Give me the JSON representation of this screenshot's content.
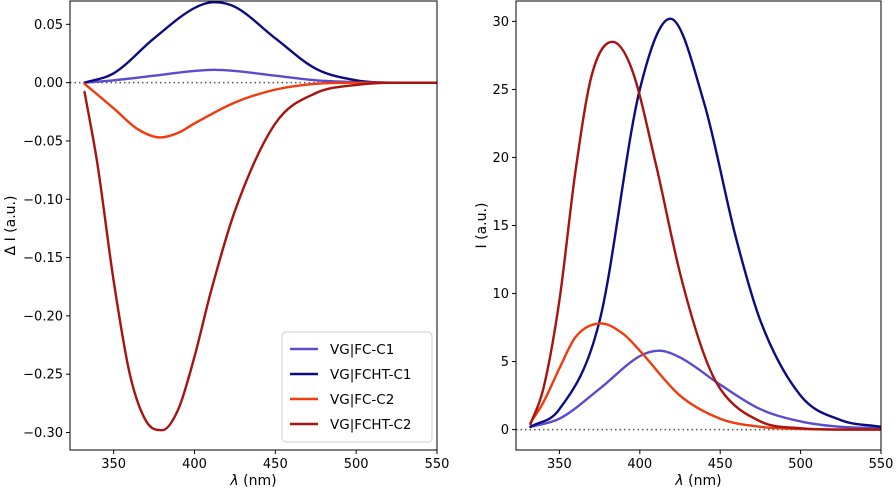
{
  "chart_data": [
    {
      "type": "line",
      "panel": "left",
      "xlabel_symbol": "λ",
      "xlabel_unit": "(nm)",
      "ylabel": "Δ I (a.u.)",
      "xlim": [
        323,
        550
      ],
      "ylim": [
        -0.315,
        0.07
      ],
      "xticks": [
        350,
        400,
        450,
        500,
        550
      ],
      "yticks": [
        0.05,
        0.0,
        -0.05,
        -0.1,
        -0.15,
        -0.2,
        -0.25,
        -0.3
      ],
      "ytick_labels": [
        "0.05",
        "0.00",
        "−0.05",
        "−0.10",
        "−0.15",
        "−0.20",
        "−0.25",
        "−0.30"
      ],
      "zero_line": true,
      "legend_position": "lower-right",
      "series": [
        {
          "name": "VG|FC-C1",
          "color": "#5a4ccf",
          "x": [
            332,
            350,
            375,
            400,
            412,
            425,
            450,
            475,
            500,
            525,
            550
          ],
          "y": [
            0.0,
            0.002,
            0.006,
            0.01,
            0.011,
            0.01,
            0.006,
            0.002,
            0.0005,
            0.0,
            0.0
          ]
        },
        {
          "name": "VG|FCHT-C1",
          "color": "#0b0b82",
          "x": [
            332,
            350,
            375,
            400,
            412,
            425,
            450,
            475,
            500,
            525,
            550
          ],
          "y": [
            0.0,
            0.008,
            0.038,
            0.064,
            0.069,
            0.065,
            0.038,
            0.012,
            0.002,
            0.0,
            0.0
          ]
        },
        {
          "name": "VG|FC-C2",
          "color": "#f23a0c",
          "x": [
            332,
            350,
            365,
            379,
            390,
            400,
            425,
            450,
            475,
            500,
            525,
            550
          ],
          "y": [
            -0.001,
            -0.022,
            -0.04,
            -0.047,
            -0.043,
            -0.035,
            -0.017,
            -0.006,
            -0.001,
            0.0,
            0.0,
            0.0
          ]
        },
        {
          "name": "VG|FCHT-C2",
          "color": "#a8120f",
          "x": [
            332,
            340,
            350,
            360,
            370,
            380,
            390,
            400,
            410,
            425,
            450,
            475,
            500,
            525,
            550
          ],
          "y": [
            -0.008,
            -0.07,
            -0.17,
            -0.25,
            -0.29,
            -0.298,
            -0.28,
            -0.235,
            -0.18,
            -0.11,
            -0.035,
            -0.009,
            -0.002,
            0.0,
            0.0
          ]
        }
      ]
    },
    {
      "type": "line",
      "panel": "right",
      "xlabel_symbol": "λ",
      "xlabel_unit": "(nm)",
      "ylabel": "I (a.u.)",
      "xlim": [
        323,
        550
      ],
      "ylim": [
        -1.5,
        31.5
      ],
      "xticks": [
        350,
        400,
        450,
        500,
        550
      ],
      "yticks": [
        0,
        5,
        10,
        15,
        20,
        25,
        30
      ],
      "ytick_labels": [
        "0",
        "5",
        "10",
        "15",
        "20",
        "25",
        "30"
      ],
      "zero_line": true,
      "series": [
        {
          "name": "VG|FC-C1",
          "color": "#5a4ccf",
          "x": [
            332,
            350,
            375,
            400,
            412,
            425,
            450,
            475,
            500,
            525,
            550
          ],
          "y": [
            0.2,
            0.8,
            3.0,
            5.4,
            5.8,
            5.3,
            3.3,
            1.5,
            0.6,
            0.2,
            0.1
          ]
        },
        {
          "name": "VG|FCHT-C1",
          "color": "#0b0b82",
          "x": [
            332,
            350,
            375,
            400,
            419,
            440,
            460,
            475,
            500,
            525,
            550
          ],
          "y": [
            0.2,
            1.5,
            8.0,
            25.0,
            30.2,
            24.0,
            14.0,
            8.0,
            2.5,
            0.7,
            0.2
          ]
        },
        {
          "name": "VG|FC-C2",
          "color": "#f23a0c",
          "x": [
            332,
            340,
            350,
            360,
            376,
            390,
            400,
            425,
            450,
            475,
            500,
            525,
            550
          ],
          "y": [
            0.5,
            2.0,
            4.5,
            6.8,
            7.8,
            7.0,
            5.8,
            2.5,
            0.8,
            0.2,
            0.05,
            0.0,
            0.0
          ]
        },
        {
          "name": "VG|FCHT-C2",
          "color": "#a8120f",
          "x": [
            332,
            340,
            350,
            360,
            370,
            383,
            395,
            410,
            425,
            440,
            450,
            475,
            500,
            525,
            550
          ],
          "y": [
            0.4,
            3.0,
            9.5,
            19.0,
            26.0,
            28.5,
            26.5,
            19.5,
            11.5,
            5.5,
            3.0,
            0.6,
            0.1,
            0.0,
            0.0
          ]
        }
      ]
    }
  ]
}
